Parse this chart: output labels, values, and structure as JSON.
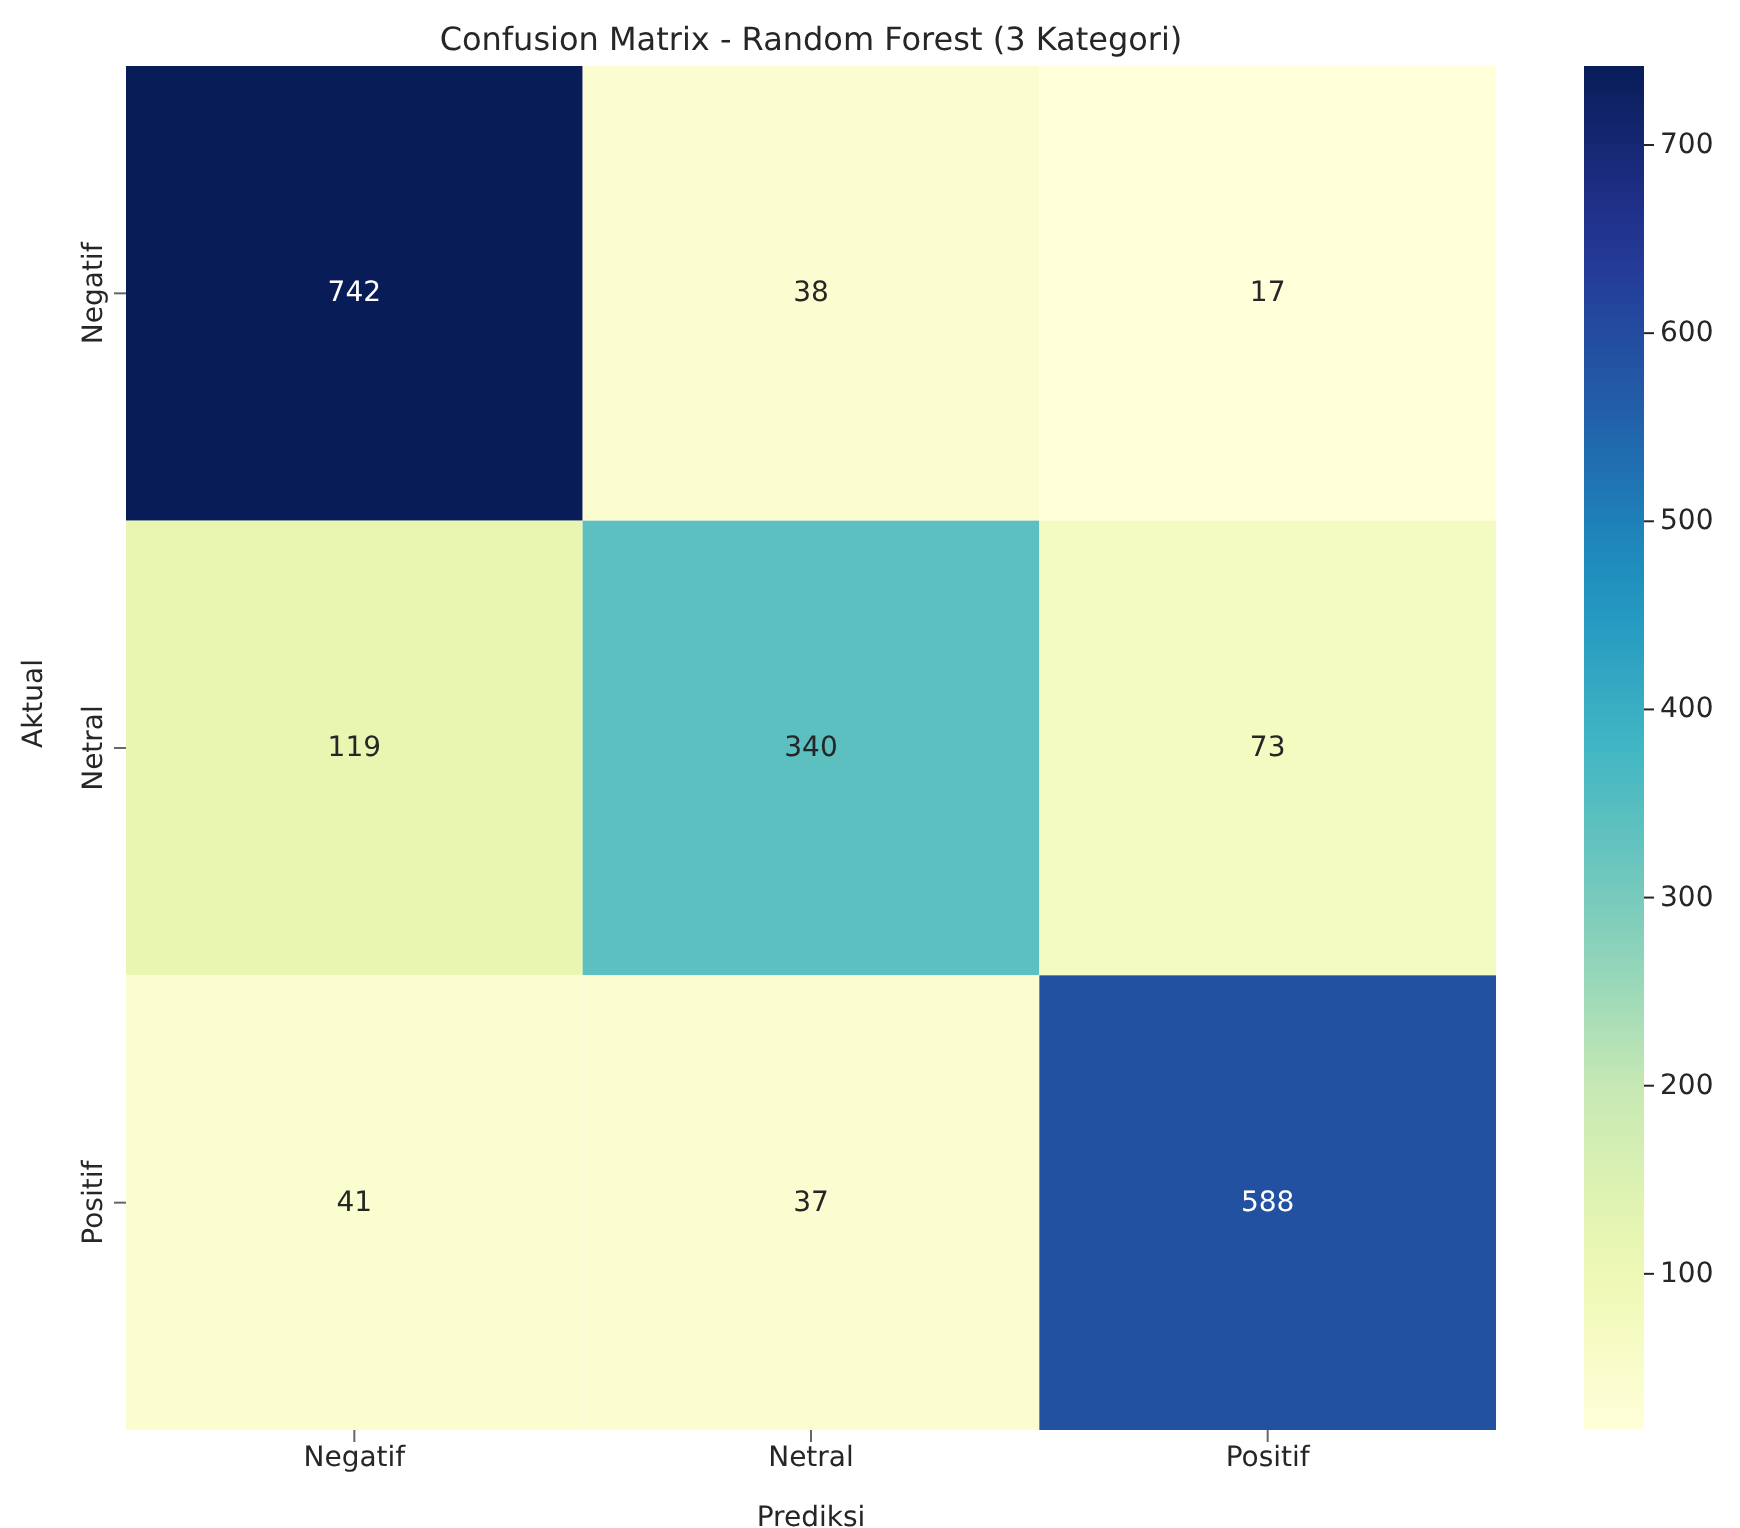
{
  "chart_data": {
    "type": "heatmap",
    "title": "Confusion Matrix - Random Forest (3 Kategori)",
    "xlabel": "Prediksi",
    "ylabel": "Aktual",
    "categories": [
      "Negatif",
      "Netral",
      "Positif"
    ],
    "y_categories": [
      "Negatif",
      "Netral",
      "Positif"
    ],
    "cells": [
      [
        742,
        38,
        17
      ],
      [
        119,
        340,
        73
      ],
      [
        41,
        37,
        588
      ]
    ],
    "clim": [
      17,
      742
    ],
    "cticks": [
      100,
      200,
      300,
      400,
      500,
      600,
      700
    ],
    "data_labels": true
  }
}
